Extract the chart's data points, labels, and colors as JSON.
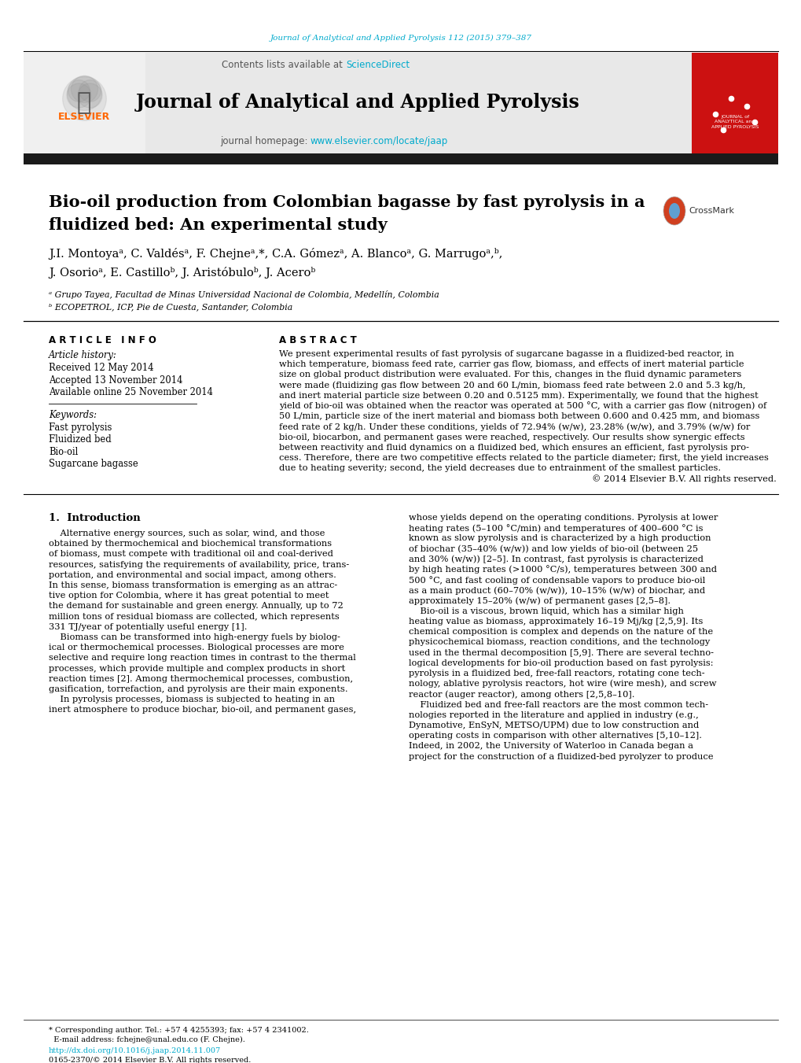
{
  "page_bg": "#ffffff",
  "top_citation": "Journal of Analytical and Applied Pyrolysis 112 (2015) 379–387",
  "top_citation_color": "#00aacc",
  "journal_name": "Journal of Analytical and Applied Pyrolysis",
  "journal_homepage_link": "www.elsevier.com/locate/jaap",
  "sciencedirect_color": "#00aacc",
  "elsevier_color": "#ff6600",
  "header_bg": "#e8e8e8",
  "dark_bar_color": "#1a1a1a",
  "article_title_line1": "Bio-oil production from Colombian bagasse by fast pyrolysis in a",
  "article_title_line2": "fluidized bed: An experimental study",
  "authors_line1": "J.I. Montoyaᵃ, C. Valdésᵃ, F. Chejneᵃ,*, C.A. Gómezᵃ, A. Blancoᵃ, G. Marrugoᵃ,ᵇ,",
  "authors_line2": "J. Osorioᵃ, E. Castilloᵇ, J. Aristóbuloᵇ, J. Aceroᵇ",
  "affil_a": "ᵃ Grupo Tayea, Facultad de Minas Universidad Nacional de Colombia, Medellín, Colombia",
  "affil_b": "ᵇ ECOPETROL, ICP, Pie de Cuesta, Santander, Colombia",
  "email_line1": "* Corresponding author. Tel.: +57 4 4255393; fax: +57 4 2341002.",
  "email_line2": "  E-mail address: fchejne@unal.edu.co (F. Chejne).",
  "doi_line": "http://dx.doi.org/10.1016/j.jaap.2014.11.007",
  "copyright_bottom": "0165-2370/© 2014 Elsevier B.V. All rights reserved.",
  "article_info_header": "A R T I C L E   I N F O",
  "abstract_header": "A B S T R A C T",
  "article_history_label": "Article history:",
  "received": "Received 12 May 2014",
  "accepted": "Accepted 13 November 2014",
  "available": "Available online 25 November 2014",
  "keywords_label": "Keywords:",
  "keywords": [
    "Fast pyrolysis",
    "Fluidized bed",
    "Bio-oil",
    "Sugarcane bagasse"
  ],
  "abstract_lines": [
    "We present experimental results of fast pyrolysis of sugarcane bagasse in a fluidized-bed reactor, in",
    "which temperature, biomass feed rate, carrier gas flow, biomass, and effects of inert material particle",
    "size on global product distribution were evaluated. For this, changes in the fluid dynamic parameters",
    "were made (fluidizing gas flow between 20 and 60 L/min, biomass feed rate between 2.0 and 5.3 kg/h,",
    "and inert material particle size between 0.20 and 0.5125 mm). Experimentally, we found that the highest",
    "yield of bio-oil was obtained when the reactor was operated at 500 °C, with a carrier gas flow (nitrogen) of",
    "50 L/min, particle size of the inert material and biomass both between 0.600 and 0.425 mm, and biomass",
    "feed rate of 2 kg/h. Under these conditions, yields of 72.94% (w/w), 23.28% (w/w), and 3.79% (w/w) for",
    "bio-oil, biocarbon, and permanent gases were reached, respectively. Our results show synergic effects",
    "between reactivity and fluid dynamics on a fluidized bed, which ensures an efficient, fast pyrolysis pro-",
    "cess. Therefore, there are two competitive effects related to the particle diameter; first, the yield increases",
    "due to heating severity; second, the yield decreases due to entrainment of the smallest particles.",
    "© 2014 Elsevier B.V. All rights reserved."
  ],
  "intro_header": "1.  Introduction",
  "intro_col1_lines": [
    "    Alternative energy sources, such as solar, wind, and those",
    "obtained by thermochemical and biochemical transformations",
    "of biomass, must compete with traditional oil and coal-derived",
    "resources, satisfying the requirements of availability, price, trans-",
    "portation, and environmental and social impact, among others.",
    "In this sense, biomass transformation is emerging as an attrac-",
    "tive option for Colombia, where it has great potential to meet",
    "the demand for sustainable and green energy. Annually, up to 72",
    "million tons of residual biomass are collected, which represents",
    "331 TJ/year of potentially useful energy [1].",
    "    Biomass can be transformed into high-energy fuels by biolog-",
    "ical or thermochemical processes. Biological processes are more",
    "selective and require long reaction times in contrast to the thermal",
    "processes, which provide multiple and complex products in short",
    "reaction times [2]. Among thermochemical processes, combustion,",
    "gasification, torrefaction, and pyrolysis are their main exponents.",
    "    In pyrolysis processes, biomass is subjected to heating in an",
    "inert atmosphere to produce biochar, bio-oil, and permanent gases,"
  ],
  "intro_col2_lines": [
    "whose yields depend on the operating conditions. Pyrolysis at lower",
    "heating rates (5–100 °C/min) and temperatures of 400–600 °C is",
    "known as slow pyrolysis and is characterized by a high production",
    "of biochar (35–40% (w/w)) and low yields of bio-oil (between 25",
    "and 30% (w/w)) [2–5]. In contrast, fast pyrolysis is characterized",
    "by high heating rates (>1000 °C/s), temperatures between 300 and",
    "500 °C, and fast cooling of condensable vapors to produce bio-oil",
    "as a main product (60–70% (w/w)), 10–15% (w/w) of biochar, and",
    "approximately 15–20% (w/w) of permanent gases [2,5–8].",
    "    Bio-oil is a viscous, brown liquid, which has a similar high",
    "heating value as biomass, approximately 16–19 Mj/kg [2,5,9]. Its",
    "chemical composition is complex and depends on the nature of the",
    "physicochemical biomass, reaction conditions, and the technology",
    "used in the thermal decomposition [5,9]. There are several techno-",
    "logical developments for bio-oil production based on fast pyrolysis:",
    "pyrolysis in a fluidized bed, free-fall reactors, rotating cone tech-",
    "nology, ablative pyrolysis reactors, hot wire (wire mesh), and screw",
    "reactor (auger reactor), among others [2,5,8–10].",
    "    Fluidized bed and free-fall reactors are the most common tech-",
    "nologies reported in the literature and applied in industry (e.g.,",
    "Dynamotive, EnSyN, METSO/UPM) due to low construction and",
    "operating costs in comparison with other alternatives [5,10–12].",
    "Indeed, in 2002, the University of Waterloo in Canada began a",
    "project for the construction of a fluidized-bed pyrolyzer to produce"
  ]
}
